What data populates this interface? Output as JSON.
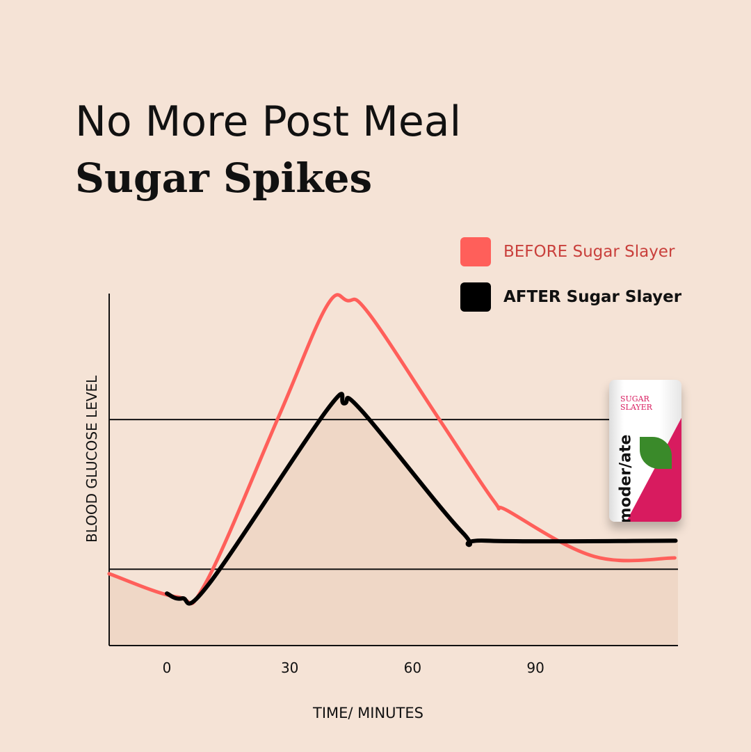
{
  "title": {
    "line1": "No More Post Meal",
    "line2": "Sugar Spikes"
  },
  "legend": [
    {
      "label": "BEFORE Sugar Slayer",
      "color": "#ff5f5a",
      "text_color": "#c9403c"
    },
    {
      "label": "AFTER Sugar Slayer",
      "color": "#000000",
      "text_color": "#111111"
    }
  ],
  "product": {
    "name": "SUGAR SLAYER",
    "brand": "moder/ate"
  },
  "chart_data": {
    "type": "line",
    "title": "No More Post Meal Sugar Spikes",
    "xlabel": "TIME/ MINUTES",
    "ylabel": "BLOOD GLUCOSE LEVEL",
    "xlim": [
      -14,
      125
    ],
    "ylim": [
      0,
      100
    ],
    "xticks": [
      0,
      30,
      60,
      90
    ],
    "reference_lines": [
      64.2,
      21.7
    ],
    "grid": false,
    "legend_position": "top-right",
    "series": [
      {
        "name": "BEFORE Sugar Slayer",
        "color": "#ff5f5a",
        "x": [
          -14.1,
          2.5,
          9.3,
          27.2,
          39,
          44.1,
          49.2,
          66.2,
          79.8,
          83.2,
          104.4,
          124
        ],
        "y": [
          20.4,
          13.8,
          17.4,
          64.8,
          96.4,
          98,
          94.5,
          64.8,
          41.1,
          38.3,
          25.3,
          24.9
        ]
      },
      {
        "name": "AFTER Sugar Slayer",
        "color": "#000000",
        "x": [
          0,
          3.7,
          10.2,
          39,
          43.3,
          47.5,
          72.1,
          78,
          124.2
        ],
        "y": [
          14.8,
          13.4,
          17.4,
          66.8,
          68.8,
          66.8,
          32.2,
          29.8,
          29.8
        ]
      }
    ]
  }
}
